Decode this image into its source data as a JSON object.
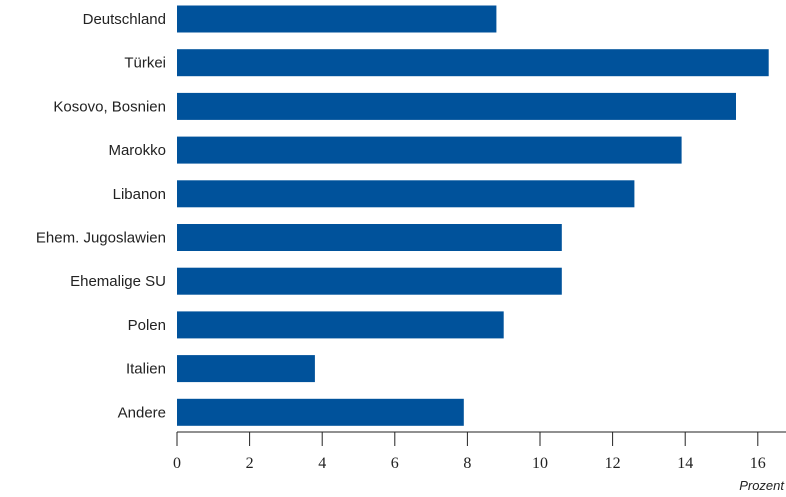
{
  "chart_data": {
    "type": "bar",
    "orientation": "horizontal",
    "categories": [
      "Deutschland",
      "Türkei",
      "Kosovo, Bosnien",
      "Marokko",
      "Libanon",
      "Ehem. Jugoslawien",
      "Ehemalige SU",
      "Polen",
      "Italien",
      "Andere"
    ],
    "values": [
      8.8,
      16.3,
      15.4,
      13.9,
      12.6,
      10.6,
      10.6,
      9.0,
      3.8,
      7.9
    ],
    "xlim": [
      0,
      17
    ],
    "xticks": [
      0,
      2,
      4,
      6,
      8,
      10,
      12,
      14,
      16
    ],
    "xtick_labels": [
      "0",
      "2",
      "4",
      "6",
      "8",
      "10",
      "12",
      "14",
      "16"
    ],
    "xlabel": "Prozent",
    "title": "",
    "grid": false,
    "bar_color": "#00529b",
    "axis_color": "#222222"
  }
}
